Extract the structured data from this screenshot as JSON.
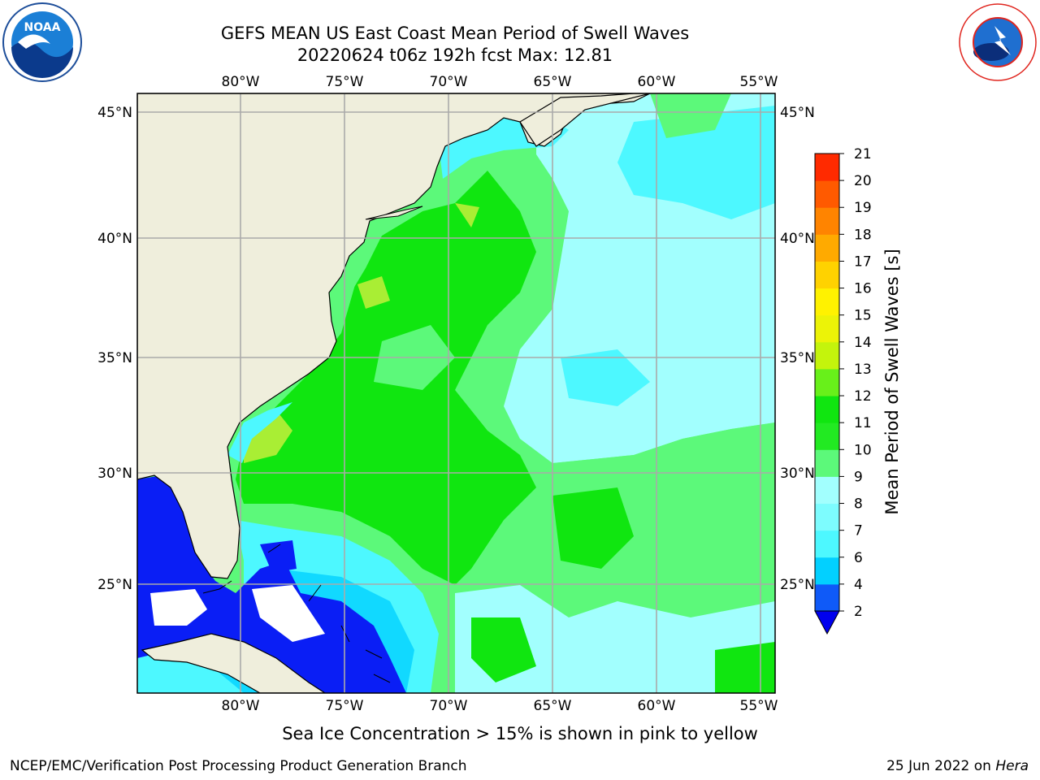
{
  "title_line1": "GEFS MEAN US East Coast Mean Period of Swell Waves",
  "title_line2": "20220624 t06z 192h fcst   Max: 12.81",
  "map": {
    "lon_labels": [
      "80°W",
      "75°W",
      "70°W",
      "65°W",
      "60°W",
      "55°W"
    ],
    "lat_labels": [
      "45°N",
      "40°N",
      "35°N",
      "30°N",
      "25°N"
    ],
    "lon_range": [
      -85,
      -54.5
    ],
    "lat_range": [
      20.5,
      46
    ],
    "land_color": "#efeedc",
    "ocean_colors": {
      "blue": "#0a1ef5",
      "deep_cyan": "#11d9ff",
      "cyan": "#4df8ff",
      "light_cyan": "#a2fffe",
      "light_green": "#5cf97a",
      "green": "#10e610",
      "yellow_green": "#a9ee34"
    }
  },
  "colorbar": {
    "label": "Mean Period of Swell Waves [s]",
    "ticks": [
      "2",
      "4",
      "6",
      "7",
      "8",
      "9",
      "10",
      "11",
      "12",
      "13",
      "14",
      "15",
      "16",
      "17",
      "18",
      "19",
      "20",
      "21"
    ],
    "colors": [
      "#0f5af8",
      "#02d0ff",
      "#4df8ff",
      "#7dfcfe",
      "#a2fffe",
      "#5cf97a",
      "#22ea22",
      "#10e610",
      "#68f01a",
      "#c4f40c",
      "#ecf307",
      "#fff200",
      "#ffd200",
      "#ffaa00",
      "#ff8400",
      "#ff5a00",
      "#ff2a00",
      "#ff0000"
    ],
    "under_color": "#0000ee"
  },
  "footer": {
    "note": "Sea Ice Concentration > 15% is shown in pink to yellow",
    "credit": "NCEP/EMC/Verification Post Processing Product Generation Branch",
    "date": "25 Jun 2022 on",
    "machine": "Hera"
  }
}
